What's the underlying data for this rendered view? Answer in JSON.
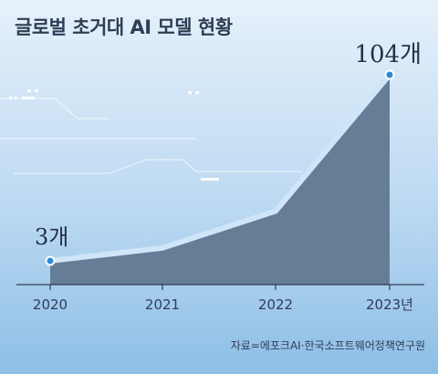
{
  "chart_data": {
    "type": "area",
    "title": "글로벌 초거대 AI 모델 현황",
    "categories": [
      "2020",
      "2021",
      "2022",
      "2023년"
    ],
    "values": [
      3,
      10,
      30,
      104
    ],
    "data_labels": [
      "3개",
      "",
      "",
      "104개"
    ],
    "ylim": [
      0,
      104
    ],
    "xlabel": "",
    "ylabel": "",
    "grid": false,
    "legend": "none",
    "source": "자료=에포크AI·한국소프트웨어정책연구원",
    "colors": {
      "area": "#667d96",
      "line": "#cfe5f8",
      "marker": "#2a8ad4",
      "text": "#2f3d55"
    }
  }
}
